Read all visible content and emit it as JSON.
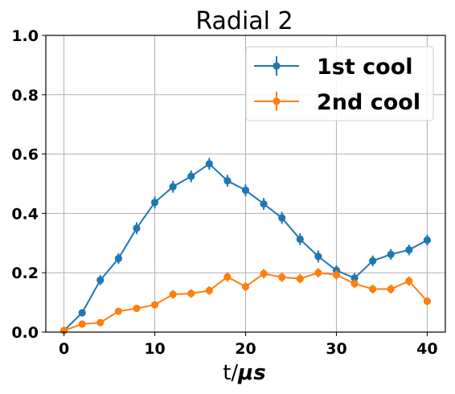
{
  "chart_data": {
    "type": "line",
    "title": "Radial 2",
    "xlabel_prefix": "t/",
    "xlabel_unit": "μs",
    "ylabel": "",
    "xlim": [
      -2,
      42
    ],
    "ylim": [
      0.0,
      1.0
    ],
    "xticks": [
      0,
      10,
      20,
      30,
      40
    ],
    "xtick_labels": [
      "0",
      "10",
      "20",
      "30",
      "40"
    ],
    "yticks": [
      0.0,
      0.2,
      0.4,
      0.6,
      0.8,
      1.0
    ],
    "ytick_labels": [
      "0.0",
      "0.2",
      "0.4",
      "0.6",
      "0.8",
      "1.0"
    ],
    "grid": true,
    "legend_position": "top-right",
    "x": [
      0,
      2,
      4,
      6,
      8,
      10,
      12,
      14,
      16,
      18,
      20,
      22,
      24,
      26,
      28,
      30,
      32,
      34,
      36,
      38,
      40
    ],
    "series": [
      {
        "name": "1st cool",
        "color": "#1f77b4",
        "values": [
          0.005,
          0.065,
          0.175,
          0.248,
          0.35,
          0.437,
          0.49,
          0.525,
          0.567,
          0.51,
          0.478,
          0.432,
          0.385,
          0.313,
          0.255,
          0.208,
          0.182,
          0.24,
          0.262,
          0.277,
          0.31
        ],
        "errors": [
          0.01,
          0.01,
          0.017,
          0.018,
          0.02,
          0.02,
          0.02,
          0.02,
          0.02,
          0.02,
          0.02,
          0.02,
          0.02,
          0.02,
          0.02,
          0.017,
          0.017,
          0.018,
          0.018,
          0.018,
          0.018
        ]
      },
      {
        "name": "2nd cool",
        "color": "#ff7f0e",
        "values": [
          0.005,
          0.027,
          0.032,
          0.07,
          0.08,
          0.092,
          0.127,
          0.13,
          0.14,
          0.186,
          0.153,
          0.197,
          0.185,
          0.18,
          0.2,
          0.193,
          0.163,
          0.145,
          0.145,
          0.172,
          0.104
        ],
        "errors": [
          0.008,
          0.008,
          0.008,
          0.01,
          0.01,
          0.012,
          0.014,
          0.014,
          0.014,
          0.016,
          0.014,
          0.016,
          0.016,
          0.016,
          0.016,
          0.016,
          0.015,
          0.015,
          0.015,
          0.016,
          0.013
        ]
      }
    ]
  }
}
